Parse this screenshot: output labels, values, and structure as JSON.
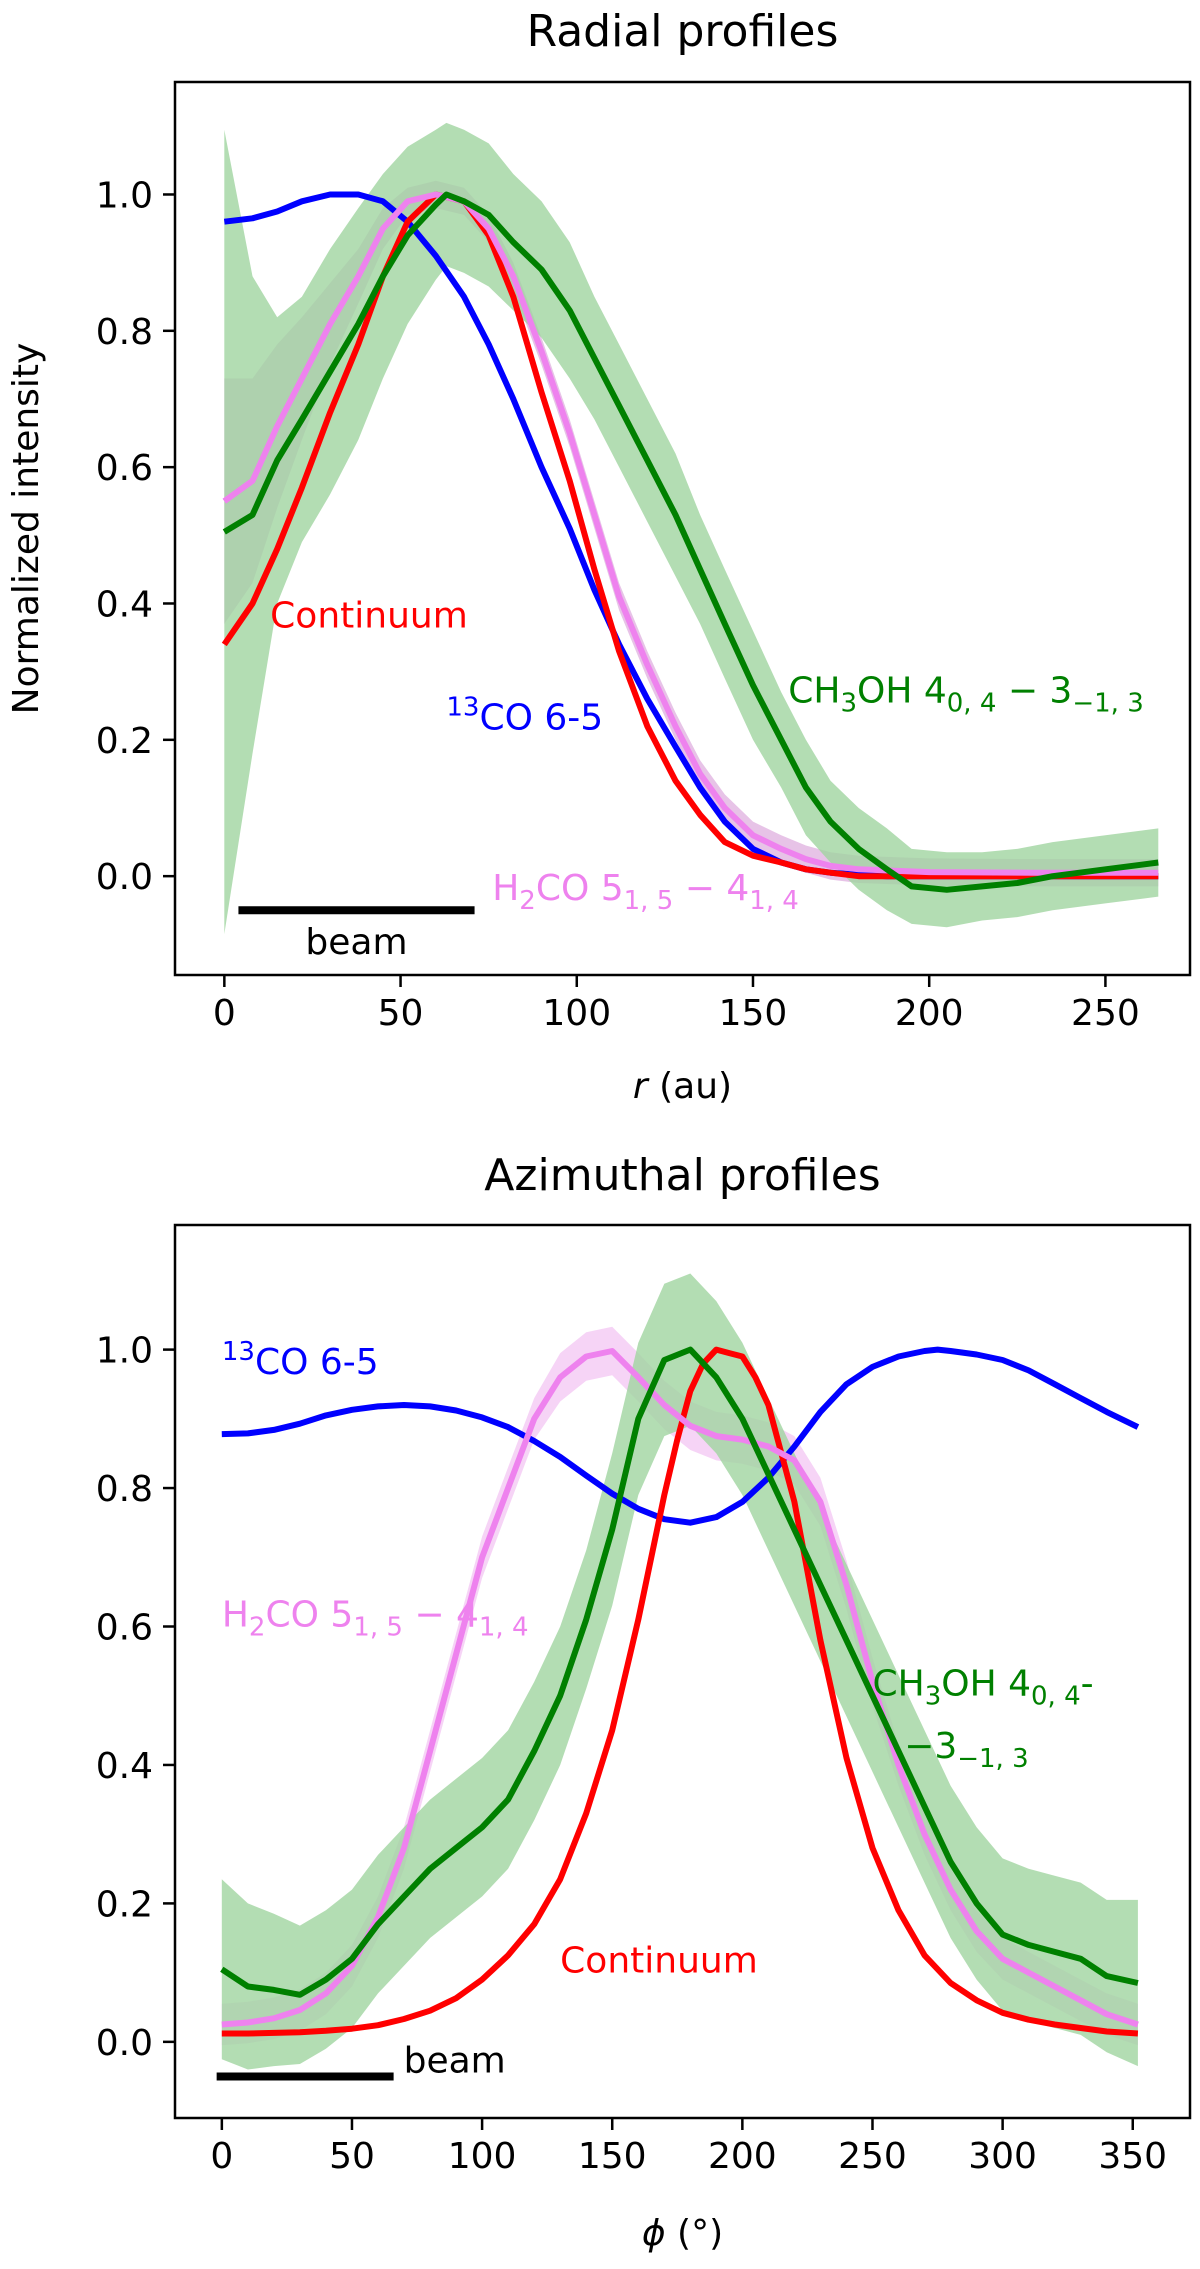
{
  "chart_data": [
    {
      "type": "line",
      "title": "Radial profiles",
      "xlabel_var": "r",
      "xlabel_unit": " (au)",
      "ylabel": "Normalized intensity",
      "xlim": [
        -14,
        274
      ],
      "ylim": [
        -0.145,
        1.165
      ],
      "xticks": [
        0,
        50,
        100,
        150,
        200,
        250
      ],
      "yticks": [
        0.0,
        0.2,
        0.4,
        0.6,
        0.8,
        1.0
      ],
      "ytick_labels": [
        "0.0",
        "0.2",
        "0.4",
        "0.6",
        "0.8",
        "1.0"
      ],
      "beam": {
        "x": [
          4,
          71
        ],
        "y": -0.05,
        "label": "beam"
      },
      "series": [
        {
          "key": "co",
          "color": "#0000ff",
          "x": [
            0,
            8,
            15,
            22,
            30,
            38,
            45,
            52,
            60,
            68,
            75,
            82,
            90,
            98,
            105,
            112,
            120,
            128,
            135,
            142,
            150,
            158,
            165,
            172,
            180,
            188,
            195,
            210,
            230,
            265
          ],
          "y": [
            0.96,
            0.965,
            0.975,
            0.99,
            1.0,
            1.0,
            0.99,
            0.96,
            0.91,
            0.85,
            0.78,
            0.7,
            0.6,
            0.51,
            0.42,
            0.34,
            0.26,
            0.19,
            0.13,
            0.08,
            0.04,
            0.02,
            0.01,
            0.005,
            0.002,
            0.0,
            0.0,
            0.0,
            0.0,
            0.0
          ]
        },
        {
          "key": "cont",
          "color": "#ff0000",
          "x": [
            0,
            8,
            15,
            22,
            30,
            38,
            45,
            52,
            60,
            68,
            75,
            82,
            90,
            98,
            105,
            112,
            120,
            128,
            135,
            142,
            150,
            158,
            165,
            172,
            180,
            190,
            200,
            230,
            265
          ],
          "y": [
            0.34,
            0.4,
            0.48,
            0.57,
            0.68,
            0.78,
            0.88,
            0.96,
            1.0,
            0.99,
            0.94,
            0.85,
            0.71,
            0.58,
            0.45,
            0.33,
            0.22,
            0.14,
            0.09,
            0.05,
            0.03,
            0.02,
            0.01,
            0.005,
            0.0,
            0.0,
            0.0,
            0.0,
            0.0
          ]
        },
        {
          "key": "h2co",
          "color": "#ee82ee",
          "band_color": "#ddaadd",
          "x": [
            0,
            8,
            15,
            22,
            30,
            38,
            45,
            52,
            60,
            68,
            75,
            82,
            90,
            98,
            105,
            112,
            120,
            128,
            135,
            142,
            150,
            158,
            165,
            172,
            180,
            190,
            200,
            230,
            265
          ],
          "y": [
            0.55,
            0.58,
            0.66,
            0.73,
            0.81,
            0.88,
            0.95,
            0.99,
            1.0,
            0.99,
            0.95,
            0.88,
            0.77,
            0.65,
            0.53,
            0.41,
            0.31,
            0.22,
            0.15,
            0.1,
            0.06,
            0.04,
            0.025,
            0.015,
            0.01,
            0.008,
            0.006,
            0.005,
            0.005
          ],
          "err": [
            0.18,
            0.15,
            0.12,
            0.09,
            0.06,
            0.04,
            0.03,
            0.02,
            0.02,
            0.02,
            0.02,
            0.02,
            0.02,
            0.02,
            0.02,
            0.02,
            0.02,
            0.02,
            0.02,
            0.02,
            0.02,
            0.02,
            0.02,
            0.02,
            0.02,
            0.02,
            0.02,
            0.02,
            0.02
          ]
        },
        {
          "key": "ch3oh",
          "color": "#008000",
          "band_color": "#a0d4a0",
          "x": [
            0,
            8,
            15,
            22,
            30,
            38,
            45,
            52,
            60,
            63,
            68,
            75,
            82,
            90,
            98,
            105,
            112,
            120,
            128,
            135,
            142,
            150,
            158,
            165,
            172,
            180,
            188,
            195,
            205,
            215,
            225,
            235,
            250,
            265
          ],
          "y": [
            0.505,
            0.53,
            0.61,
            0.67,
            0.74,
            0.81,
            0.88,
            0.94,
            0.985,
            1.0,
            0.99,
            0.97,
            0.93,
            0.89,
            0.83,
            0.76,
            0.69,
            0.61,
            0.53,
            0.45,
            0.37,
            0.28,
            0.2,
            0.13,
            0.08,
            0.04,
            0.01,
            -0.015,
            -0.02,
            -0.015,
            -0.01,
            0.0,
            0.01,
            0.02
          ],
          "err": [
            0.59,
            0.35,
            0.21,
            0.18,
            0.18,
            0.17,
            0.15,
            0.13,
            0.11,
            0.105,
            0.105,
            0.105,
            0.1,
            0.1,
            0.1,
            0.09,
            0.09,
            0.09,
            0.09,
            0.08,
            0.08,
            0.08,
            0.07,
            0.07,
            0.06,
            0.06,
            0.06,
            0.055,
            0.055,
            0.05,
            0.05,
            0.05,
            0.05,
            0.05
          ]
        }
      ],
      "labels": [
        {
          "key": "cont",
          "x": 13,
          "y": 0.365,
          "anchor": "start",
          "color": "#ff0000",
          "parts": [
            [
              "Continuum",
              "n"
            ]
          ]
        },
        {
          "key": "co",
          "x": 63,
          "y": 0.215,
          "anchor": "start",
          "color": "#0000ff",
          "parts": [
            [
              "13",
              "sup"
            ],
            [
              "CO 6-5",
              "n"
            ]
          ]
        },
        {
          "key": "ch3oh",
          "x": 160,
          "y": 0.255,
          "anchor": "start",
          "color": "#008000",
          "parts": [
            [
              "CH",
              "n"
            ],
            [
              "3",
              "sub"
            ],
            [
              "OH 4",
              "n"
            ],
            [
              "0, 4",
              "sub"
            ],
            [
              " − 3",
              "n"
            ],
            [
              "−1, 3",
              "sub"
            ]
          ]
        },
        {
          "key": "h2co",
          "x": 76,
          "y": -0.035,
          "anchor": "start",
          "color": "#ee82ee",
          "parts": [
            [
              "H",
              "n"
            ],
            [
              "2",
              "sub"
            ],
            [
              "CO 5",
              "n"
            ],
            [
              "1, 5",
              "sub"
            ],
            [
              " − 4",
              "n"
            ],
            [
              "1, 4",
              "sub"
            ]
          ]
        }
      ]
    },
    {
      "type": "line",
      "title": "Azimuthal profiles",
      "xlabel_var": "ϕ",
      "xlabel_unit": " (°)",
      "ylabel": "",
      "xlim": [
        -18,
        372
      ],
      "ylim": [
        -0.11,
        1.18
      ],
      "xticks": [
        0,
        50,
        100,
        150,
        200,
        250,
        300,
        350
      ],
      "yticks": [
        0.0,
        0.2,
        0.4,
        0.6,
        0.8,
        1.0
      ],
      "ytick_labels": [
        "0.0",
        "0.2",
        "0.4",
        "0.6",
        "0.8",
        "1.0"
      ],
      "beam": {
        "x": [
          -2,
          66
        ],
        "y": -0.05,
        "label": "beam"
      },
      "series": [
        {
          "key": "co",
          "color": "#0000ff",
          "x": [
            0,
            10,
            20,
            30,
            40,
            50,
            60,
            70,
            80,
            90,
            100,
            110,
            120,
            130,
            140,
            150,
            160,
            170,
            180,
            190,
            200,
            210,
            220,
            230,
            240,
            250,
            260,
            270,
            275,
            280,
            290,
            300,
            310,
            320,
            330,
            340,
            352
          ],
          "y": [
            0.878,
            0.879,
            0.884,
            0.893,
            0.905,
            0.913,
            0.918,
            0.92,
            0.918,
            0.912,
            0.902,
            0.888,
            0.868,
            0.845,
            0.818,
            0.792,
            0.77,
            0.755,
            0.75,
            0.758,
            0.78,
            0.815,
            0.86,
            0.91,
            0.95,
            0.975,
            0.99,
            0.998,
            1.0,
            0.998,
            0.993,
            0.985,
            0.97,
            0.95,
            0.93,
            0.91,
            0.888
          ]
        },
        {
          "key": "cont",
          "color": "#ff0000",
          "x": [
            0,
            10,
            20,
            30,
            40,
            50,
            60,
            70,
            80,
            90,
            100,
            110,
            120,
            130,
            140,
            150,
            160,
            170,
            175,
            180,
            185,
            190,
            195,
            200,
            205,
            210,
            220,
            230,
            240,
            250,
            260,
            270,
            280,
            290,
            300,
            310,
            320,
            330,
            340,
            352
          ],
          "y": [
            0.012,
            0.012,
            0.013,
            0.014,
            0.016,
            0.019,
            0.024,
            0.033,
            0.045,
            0.063,
            0.09,
            0.125,
            0.17,
            0.235,
            0.33,
            0.45,
            0.61,
            0.79,
            0.87,
            0.94,
            0.98,
            1.0,
            0.995,
            0.99,
            0.96,
            0.92,
            0.78,
            0.58,
            0.41,
            0.28,
            0.19,
            0.125,
            0.085,
            0.06,
            0.042,
            0.032,
            0.025,
            0.02,
            0.015,
            0.012
          ]
        },
        {
          "key": "h2co",
          "color": "#ee82ee",
          "band_color": "#f2c2f2",
          "x": [
            0,
            10,
            20,
            30,
            40,
            50,
            60,
            70,
            80,
            90,
            100,
            110,
            120,
            130,
            140,
            150,
            160,
            170,
            180,
            190,
            200,
            210,
            220,
            230,
            240,
            250,
            260,
            270,
            280,
            290,
            300,
            310,
            320,
            330,
            340,
            352
          ],
          "y": [
            0.025,
            0.028,
            0.034,
            0.046,
            0.07,
            0.11,
            0.18,
            0.28,
            0.42,
            0.56,
            0.7,
            0.8,
            0.9,
            0.96,
            0.99,
            0.998,
            0.96,
            0.92,
            0.89,
            0.875,
            0.87,
            0.86,
            0.84,
            0.78,
            0.66,
            0.52,
            0.4,
            0.3,
            0.22,
            0.16,
            0.12,
            0.1,
            0.08,
            0.06,
            0.04,
            0.025
          ],
          "err": [
            0.03,
            0.03,
            0.03,
            0.03,
            0.03,
            0.03,
            0.03,
            0.03,
            0.03,
            0.03,
            0.03,
            0.03,
            0.03,
            0.035,
            0.035,
            0.035,
            0.035,
            0.035,
            0.035,
            0.035,
            0.035,
            0.035,
            0.035,
            0.035,
            0.035,
            0.035,
            0.03,
            0.03,
            0.03,
            0.03,
            0.03,
            0.03,
            0.03,
            0.03,
            0.03,
            0.03
          ]
        },
        {
          "key": "ch3oh",
          "color": "#008000",
          "band_color": "#a0d4a0",
          "x": [
            0,
            10,
            20,
            30,
            40,
            50,
            60,
            70,
            80,
            90,
            100,
            110,
            120,
            130,
            140,
            150,
            160,
            170,
            180,
            190,
            200,
            210,
            220,
            230,
            240,
            250,
            260,
            270,
            280,
            290,
            300,
            310,
            320,
            330,
            340,
            352
          ],
          "y": [
            0.105,
            0.08,
            0.075,
            0.068,
            0.09,
            0.12,
            0.17,
            0.21,
            0.25,
            0.28,
            0.31,
            0.35,
            0.42,
            0.5,
            0.61,
            0.74,
            0.9,
            0.985,
            1.0,
            0.96,
            0.9,
            0.82,
            0.74,
            0.66,
            0.58,
            0.5,
            0.42,
            0.34,
            0.26,
            0.2,
            0.155,
            0.14,
            0.13,
            0.12,
            0.095,
            0.085
          ],
          "err": [
            0.13,
            0.12,
            0.11,
            0.1,
            0.1,
            0.1,
            0.1,
            0.1,
            0.1,
            0.1,
            0.1,
            0.1,
            0.1,
            0.1,
            0.1,
            0.11,
            0.11,
            0.11,
            0.11,
            0.11,
            0.11,
            0.11,
            0.11,
            0.11,
            0.11,
            0.11,
            0.11,
            0.11,
            0.11,
            0.11,
            0.11,
            0.11,
            0.11,
            0.11,
            0.11,
            0.12
          ]
        }
      ],
      "labels": [
        {
          "key": "co",
          "x": 0,
          "y": 0.965,
          "anchor": "start",
          "color": "#0000ff",
          "parts": [
            [
              "13",
              "sup"
            ],
            [
              "CO 6-5",
              "n"
            ]
          ]
        },
        {
          "key": "h2co",
          "x": 0,
          "y": 0.6,
          "anchor": "start",
          "color": "#ee82ee",
          "parts": [
            [
              "H",
              "n"
            ],
            [
              "2",
              "sub"
            ],
            [
              "CO 5",
              "n"
            ],
            [
              "1, 5",
              "sub"
            ],
            [
              " − 4",
              "n"
            ],
            [
              "1, 4",
              "sub"
            ]
          ]
        },
        {
          "key": "ch3oh",
          "x": 250,
          "y": 0.5,
          "anchor": "start",
          "color": "#008000",
          "parts": [
            [
              "CH",
              "n"
            ],
            [
              "3",
              "sub"
            ],
            [
              "OH 4",
              "n"
            ],
            [
              "0, 4",
              "sub"
            ],
            [
              "-",
              "n"
            ]
          ]
        },
        {
          "key": "ch3oh",
          "x": 310,
          "y": 0.41,
          "anchor": "end",
          "color": "#008000",
          "parts": [
            [
              "−3",
              "n"
            ],
            [
              "−1, 3",
              "sub"
            ]
          ]
        },
        {
          "key": "cont",
          "x": 130,
          "y": 0.1,
          "anchor": "start",
          "color": "#ff0000",
          "parts": [
            [
              "Continuum",
              "n"
            ]
          ]
        }
      ]
    }
  ]
}
